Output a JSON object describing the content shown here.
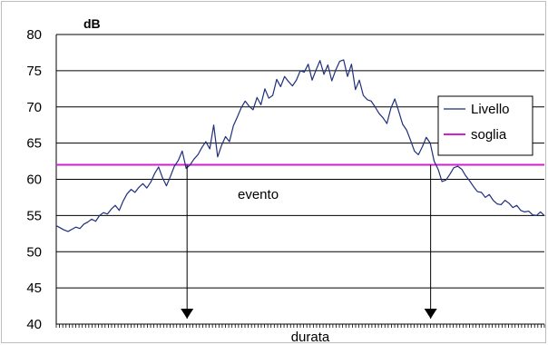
{
  "chart_data": {
    "type": "line",
    "title": "",
    "xlabel": "durata",
    "ylabel": "dB",
    "ylim": [
      40,
      80
    ],
    "yticks": [
      40,
      45,
      50,
      55,
      60,
      65,
      70,
      75,
      80
    ],
    "grid": true,
    "legend_position": "right",
    "series": [
      {
        "name": "Livello",
        "color": "#1f2f7a",
        "values": [
          53.6,
          53.3,
          53.0,
          52.8,
          53.1,
          53.4,
          53.2,
          53.8,
          54.1,
          54.5,
          54.2,
          55.0,
          55.4,
          55.2,
          55.9,
          56.4,
          55.7,
          57.0,
          58.0,
          58.6,
          58.2,
          58.9,
          59.4,
          58.8,
          59.6,
          60.8,
          61.7,
          60.2,
          59.1,
          60.4,
          61.8,
          62.6,
          63.9,
          61.5,
          62.0,
          62.8,
          63.4,
          64.4,
          65.2,
          64.2,
          67.5,
          63.1,
          64.7,
          65.9,
          65.2,
          67.4,
          68.6,
          69.9,
          70.8,
          70.1,
          69.6,
          71.3,
          70.3,
          72.5,
          71.2,
          71.6,
          73.8,
          72.8,
          74.2,
          73.5,
          72.9,
          73.7,
          75.0,
          74.8,
          75.9,
          73.7,
          75.1,
          76.4,
          74.5,
          75.8,
          73.6,
          75.1,
          76.3,
          76.5,
          74.2,
          75.9,
          72.4,
          73.7,
          71.6,
          71.0,
          70.8,
          70.0,
          69.1,
          68.5,
          67.7,
          69.8,
          71.1,
          69.4,
          67.6,
          66.8,
          65.4,
          63.9,
          63.4,
          64.5,
          65.8,
          65.0,
          62.5,
          61.4,
          59.7,
          59.9,
          60.7,
          61.6,
          61.8,
          61.4,
          60.5,
          59.8,
          59.0,
          58.3,
          58.2,
          57.5,
          57.9,
          57.1,
          56.6,
          56.5,
          57.1,
          56.7,
          56.1,
          56.4,
          55.7,
          55.5,
          55.6,
          55.1,
          55.0,
          55.5,
          55.0
        ]
      },
      {
        "name": "soglia",
        "color": "#d11fd1",
        "constant": 62
      }
    ],
    "annotations": [
      {
        "text": "evento"
      }
    ],
    "event_markers": [
      {
        "x_fraction": 0.268
      },
      {
        "x_fraction": 0.767
      }
    ]
  }
}
